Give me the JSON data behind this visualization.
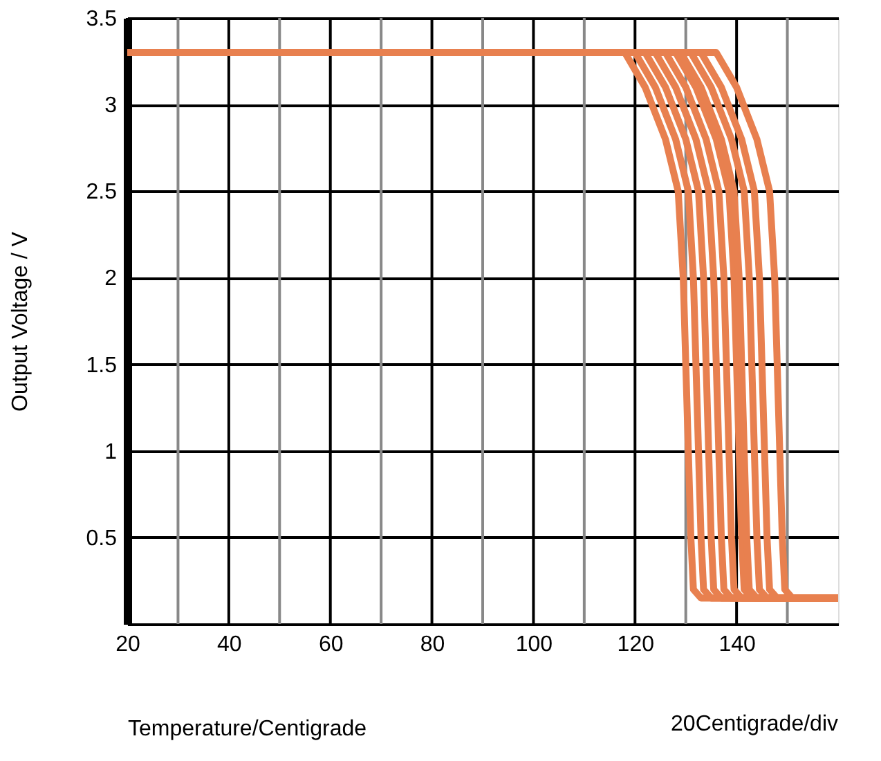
{
  "chart_data": {
    "type": "line",
    "xlabel": "Temperature/Centigrade",
    "ylabel": "Output Voltage / V",
    "annotations": [
      "20Centigrade/div"
    ],
    "xlim": [
      20,
      160
    ],
    "ylim": [
      0,
      3.5
    ],
    "xticks": [
      20,
      {
        "value": 30,
        "label": null
      },
      40,
      {
        "value": 50,
        "label": null
      },
      60,
      {
        "value": 70,
        "label": null
      },
      80,
      {
        "value": 90,
        "label": null
      },
      100,
      {
        "value": 110,
        "label": null
      },
      120,
      {
        "value": 130,
        "label": null
      },
      140,
      {
        "value": 150,
        "label": null
      }
    ],
    "yticks": [
      0.5,
      1,
      1.5,
      2,
      2.5,
      3,
      3.5
    ],
    "grid": true,
    "legend": false,
    "series": [
      {
        "color": "#e8804f",
        "x": [
          20,
          118,
          122,
          126,
          128.5,
          129.5,
          130,
          130.5,
          131,
          131.5,
          133,
          160
        ],
        "values": [
          3.3,
          3.3,
          3.1,
          2.8,
          2.5,
          2.0,
          1.5,
          1.0,
          0.5,
          0.2,
          0.15,
          0.15
        ]
      },
      {
        "color": "#e8804f",
        "x": [
          20,
          120,
          124,
          128,
          130.5,
          131.5,
          132,
          132.5,
          133,
          133.5,
          135,
          160
        ],
        "values": [
          3.3,
          3.3,
          3.1,
          2.8,
          2.5,
          2.0,
          1.5,
          1.0,
          0.5,
          0.2,
          0.15,
          0.15
        ]
      },
      {
        "color": "#e8804f",
        "x": [
          20,
          122,
          126,
          130,
          132.5,
          133.5,
          134,
          134.5,
          135,
          135.5,
          137,
          160
        ],
        "values": [
          3.3,
          3.3,
          3.1,
          2.8,
          2.5,
          2.0,
          1.5,
          1.0,
          0.5,
          0.2,
          0.15,
          0.15
        ]
      },
      {
        "color": "#e8804f",
        "x": [
          20,
          124,
          128,
          132,
          134.5,
          135.5,
          136,
          136.5,
          137,
          137.5,
          139,
          160
        ],
        "values": [
          3.3,
          3.3,
          3.1,
          2.8,
          2.5,
          2.0,
          1.5,
          1.0,
          0.5,
          0.2,
          0.15,
          0.15
        ]
      },
      {
        "color": "#e8804f",
        "x": [
          20,
          126,
          130,
          134,
          136.5,
          137.5,
          138,
          138.5,
          139,
          139.5,
          141,
          160
        ],
        "values": [
          3.3,
          3.3,
          3.1,
          2.8,
          2.5,
          2.0,
          1.5,
          1.0,
          0.5,
          0.2,
          0.15,
          0.15
        ]
      },
      {
        "color": "#e8804f",
        "x": [
          20,
          128,
          132,
          136,
          138.5,
          139.5,
          140,
          140.5,
          141,
          141.5,
          143,
          160
        ],
        "values": [
          3.3,
          3.3,
          3.1,
          2.8,
          2.5,
          2.0,
          1.5,
          1.0,
          0.5,
          0.2,
          0.15,
          0.15
        ]
      },
      {
        "color": "#e8804f",
        "x": [
          20,
          129,
          133,
          137,
          139.5,
          140.5,
          141,
          141.5,
          142,
          142.5,
          144,
          160
        ],
        "values": [
          3.3,
          3.3,
          3.1,
          2.8,
          2.5,
          2.0,
          1.5,
          1.0,
          0.5,
          0.2,
          0.15,
          0.15
        ]
      },
      {
        "color": "#e8804f",
        "x": [
          20,
          131,
          135,
          139,
          141.5,
          142.5,
          143,
          143.5,
          144,
          144.5,
          146,
          160
        ],
        "values": [
          3.3,
          3.3,
          3.1,
          2.8,
          2.5,
          2.0,
          1.5,
          1.0,
          0.5,
          0.2,
          0.15,
          0.15
        ]
      },
      {
        "color": "#e8804f",
        "x": [
          20,
          133,
          137,
          141,
          143.5,
          144.5,
          145,
          145.5,
          146,
          146.5,
          148,
          160
        ],
        "values": [
          3.3,
          3.3,
          3.1,
          2.8,
          2.5,
          2.0,
          1.5,
          1.0,
          0.5,
          0.2,
          0.15,
          0.15
        ]
      },
      {
        "color": "#e8804f",
        "x": [
          20,
          136,
          140,
          144,
          146.5,
          147.5,
          148,
          148.5,
          149,
          149.5,
          151,
          160
        ],
        "values": [
          3.3,
          3.3,
          3.1,
          2.8,
          2.5,
          2.0,
          1.5,
          1.0,
          0.5,
          0.2,
          0.15,
          0.15
        ]
      }
    ]
  }
}
